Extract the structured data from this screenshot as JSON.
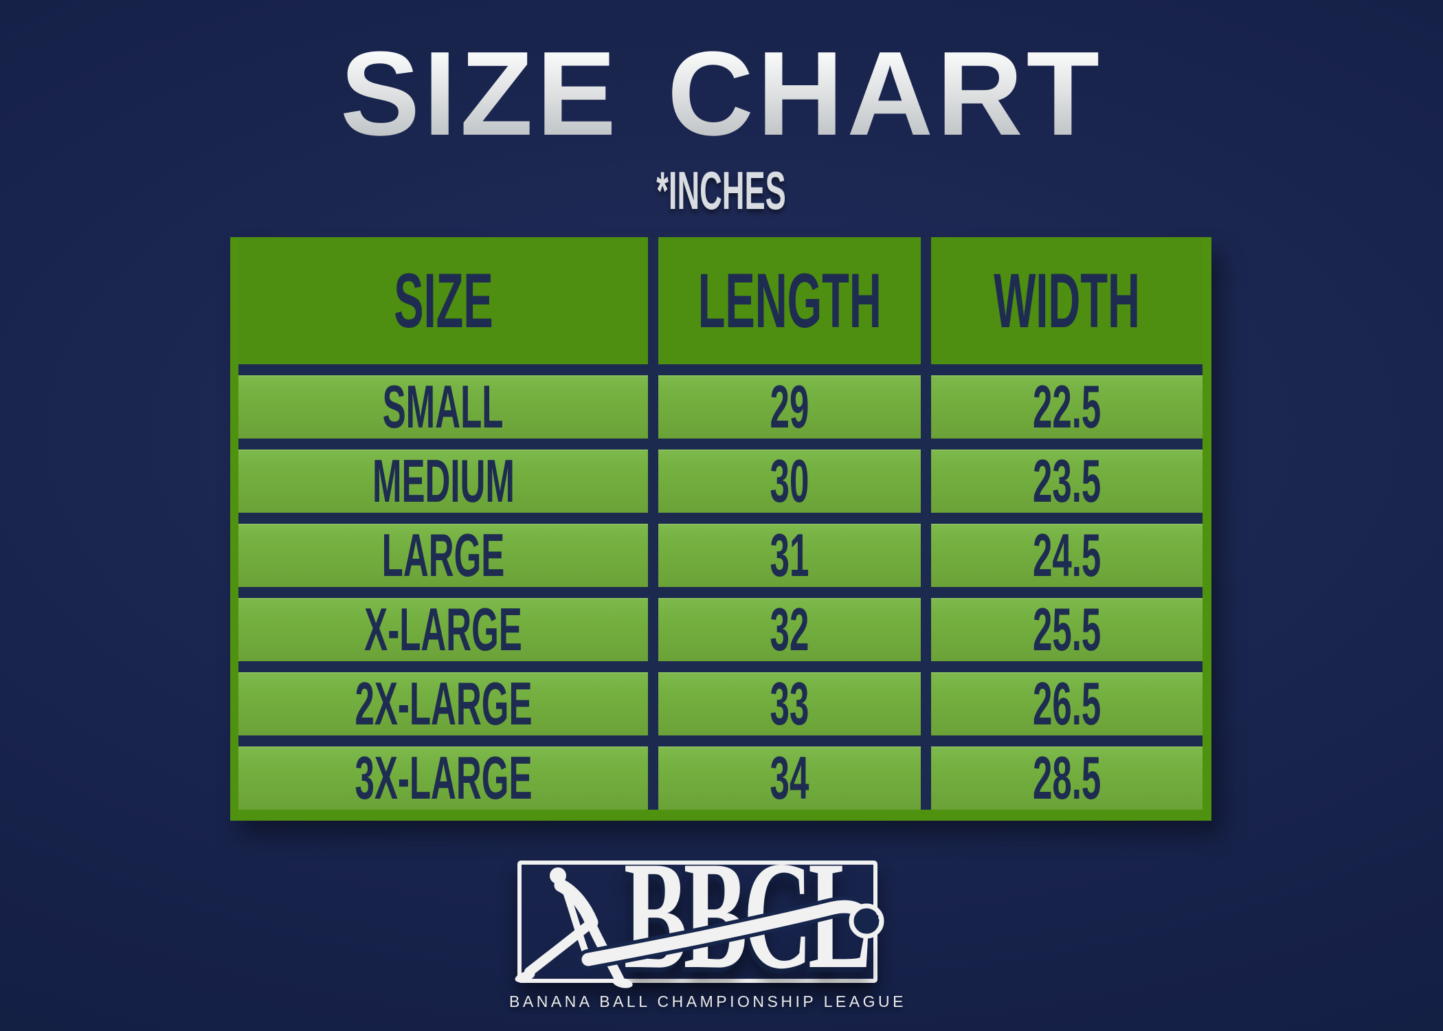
{
  "title": "SIZE CHART",
  "units_note": "*INCHES",
  "table": {
    "headers": [
      "SIZE",
      "LENGTH",
      "WIDTH"
    ],
    "rows": [
      {
        "size": "SMALL",
        "length": "29",
        "width": "22.5"
      },
      {
        "size": "MEDIUM",
        "length": "30",
        "width": "23.5"
      },
      {
        "size": "LARGE",
        "length": "31",
        "width": "24.5"
      },
      {
        "size": "X-LARGE",
        "length": "32",
        "width": "25.5"
      },
      {
        "size": "2X-LARGE",
        "length": "33",
        "width": "26.5"
      },
      {
        "size": "3X-LARGE",
        "length": "34",
        "width": "28.5"
      }
    ]
  },
  "logo": {
    "acronym": "BBCL",
    "tagline": "BANANA BALL CHAMPIONSHIP LEAGUE",
    "icons": {
      "pitcher": "baseball-pitcher-silhouette",
      "ball": "baseball"
    }
  },
  "colors": {
    "background_navy": "#17224a",
    "table_frame_green": "#4f9210",
    "header_green": "#4e8e10",
    "row_green": "#74b040",
    "divider_navy": "#1b2a4e",
    "cell_text_navy": "#1d2c50",
    "title_outline_navy": "#0e3049",
    "subtitle_gray": "#d9dde1",
    "logo_white": "#f1f1f1",
    "logo_navy": "#16254c"
  }
}
